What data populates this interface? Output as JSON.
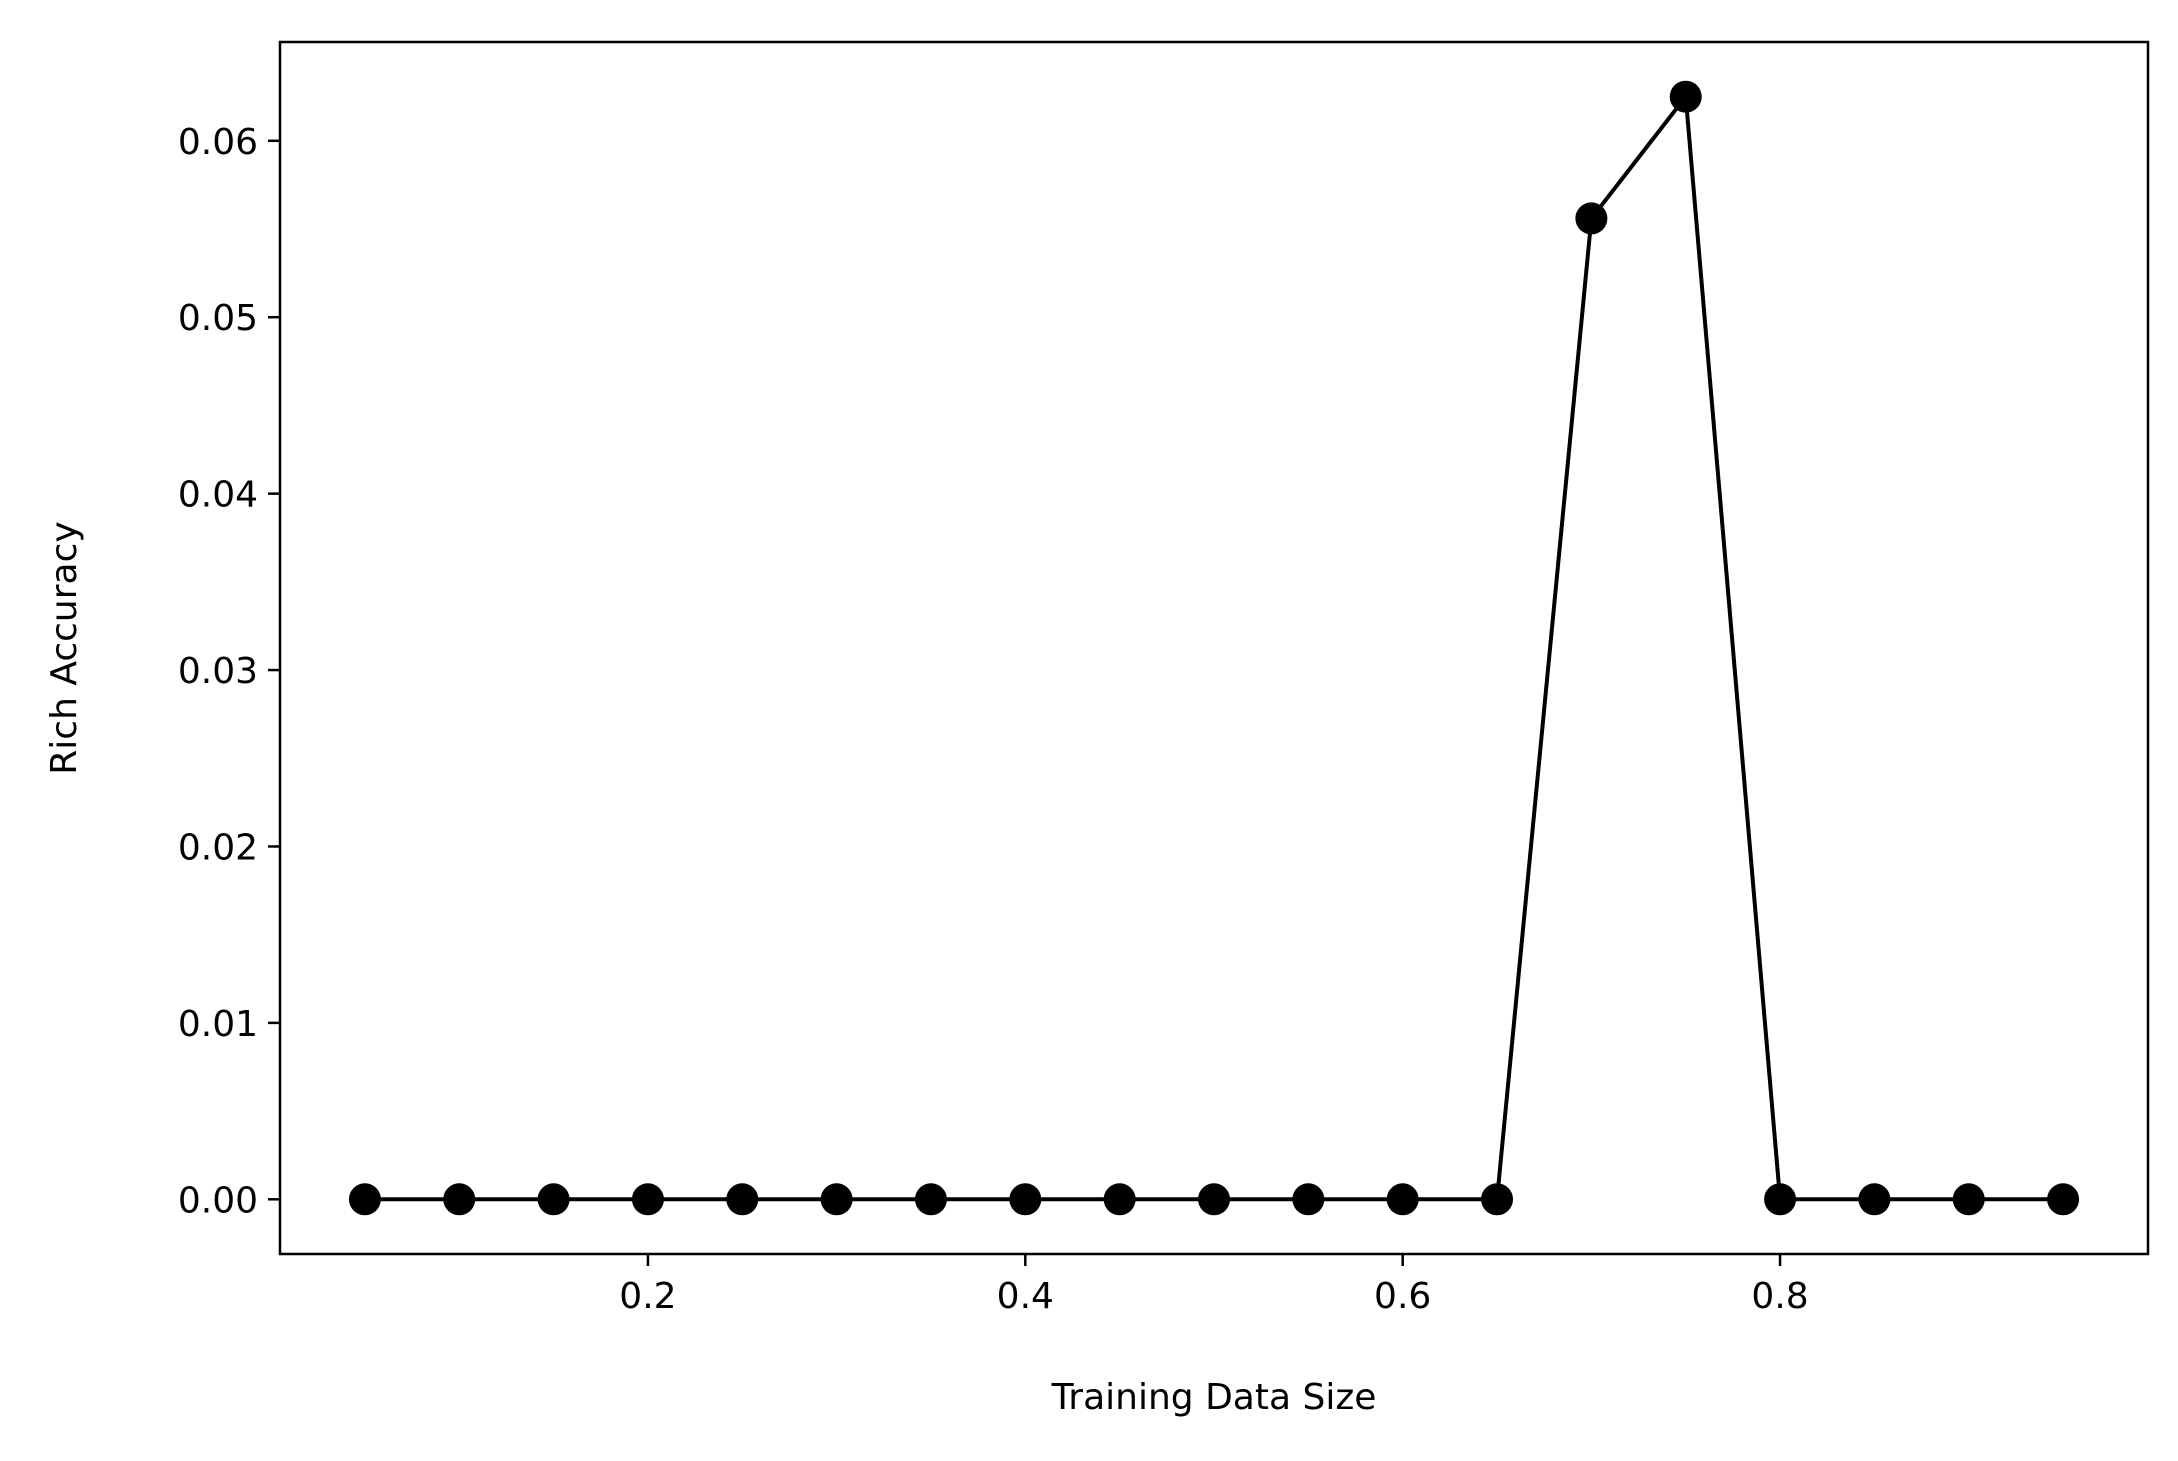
{
  "chart_data": {
    "type": "line",
    "xlabel": "Training Data Size",
    "ylabel": "Rich Accuracy",
    "xlim": [
      0.005,
      0.995
    ],
    "ylim": [
      -0.0031,
      0.0656
    ],
    "xticks": [
      0.2,
      0.4,
      0.6,
      0.8
    ],
    "xtick_labels": [
      "0.2",
      "0.4",
      "0.6",
      "0.8"
    ],
    "yticks": [
      0.0,
      0.01,
      0.02,
      0.03,
      0.04,
      0.05,
      0.06
    ],
    "ytick_labels": [
      "0.00",
      "0.01",
      "0.02",
      "0.03",
      "0.04",
      "0.05",
      "0.06"
    ],
    "grid": false,
    "legend": "none",
    "series": [
      {
        "color": "#000000",
        "marker": "circle",
        "x": [
          0.05,
          0.1,
          0.15,
          0.2,
          0.25,
          0.3,
          0.35,
          0.4,
          0.45,
          0.5,
          0.55,
          0.6,
          0.65,
          0.7,
          0.75,
          0.8,
          0.85,
          0.9,
          0.95
        ],
        "values": [
          0.0,
          0.0,
          0.0,
          0.0,
          0.0,
          0.0,
          0.0,
          0.0,
          0.0,
          0.0,
          0.0,
          0.0,
          0.0,
          0.0556,
          0.0625,
          0.0,
          0.0,
          0.0,
          0.0
        ]
      }
    ]
  }
}
